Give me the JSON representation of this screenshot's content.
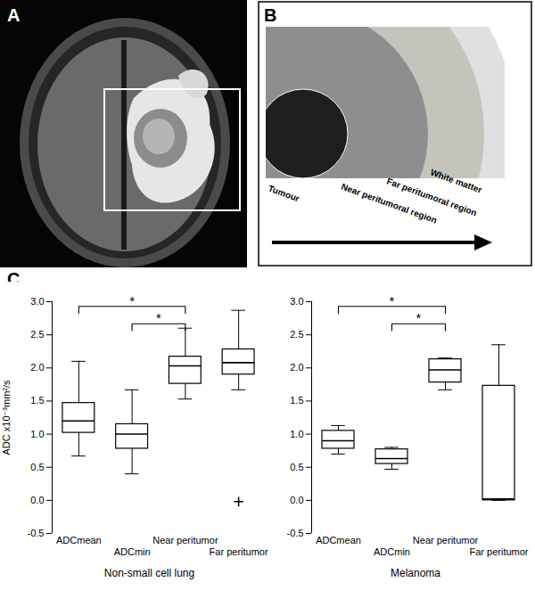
{
  "panel_labels": [
    "A",
    "B",
    "C"
  ],
  "diagram": {
    "labels": [
      "Tumour",
      "Near peritumoral region",
      "Far peritumoral region",
      "White matter"
    ]
  },
  "chart_data": [
    {
      "type": "box",
      "x_label": "Non-small cell lung",
      "y_label": "ADC x10⁻³mm²/s",
      "categories": [
        "ADCmean",
        "ADCmin",
        "Near peritumor",
        "Far peritumor"
      ],
      "min": [
        0.67,
        0.4,
        1.53,
        1.67
      ],
      "q1": [
        1.02,
        0.78,
        1.76,
        1.9
      ],
      "median": [
        1.2,
        1.0,
        2.03,
        2.08
      ],
      "q3": [
        1.47,
        1.15,
        2.17,
        2.28
      ],
      "max": [
        2.1,
        1.67,
        2.6,
        2.87
      ],
      "outliers": [
        [],
        [],
        [],
        [
          -0.02
        ]
      ],
      "marker": "plus",
      "ylim": [
        -0.5,
        3.0
      ],
      "yticks": [
        -0.5,
        {
          "value": 0,
          "label": "0.0"
        },
        0.5,
        {
          "value": 1,
          "label": "1.0"
        },
        1.5,
        {
          "value": 2,
          "label": "2.0"
        },
        2.5,
        {
          "value": 3,
          "label": "3.0"
        }
      ],
      "significance": [
        {
          "from": "ADCmean",
          "to": "Near peritumor",
          "label": "*"
        },
        {
          "from": "ADCmin",
          "to": "Near peritumor",
          "label": "*"
        }
      ]
    },
    {
      "type": "box",
      "x_label": "Melanoma",
      "categories": [
        "ADCmean",
        "ADCmin",
        "Near peritumor",
        "Far peritumor"
      ],
      "min": [
        0.7,
        0.47,
        1.67,
        0.0
      ],
      "q1": [
        0.78,
        0.55,
        1.78,
        0.0
      ],
      "median": [
        0.9,
        0.63,
        1.97,
        0.02
      ],
      "q3": [
        1.05,
        0.77,
        2.13,
        1.73
      ],
      "max": [
        1.13,
        0.8,
        2.15,
        2.35
      ],
      "outliers": [
        [],
        [],
        [],
        []
      ],
      "marker": "plus",
      "ylim": [
        -0.5,
        3.0
      ],
      "yticks": [
        -0.5,
        {
          "value": 0,
          "label": "0.0"
        },
        0.5,
        {
          "value": 1,
          "label": "1.0"
        },
        1.5,
        {
          "value": 2,
          "label": "2.0"
        },
        2.5,
        {
          "value": 3,
          "label": "3.0"
        }
      ],
      "significance": [
        {
          "from": "ADCmean",
          "to": "Near peritumor",
          "label": "*"
        },
        {
          "from": "ADCmin",
          "to": "Near peritumor",
          "label": "*"
        }
      ]
    }
  ]
}
